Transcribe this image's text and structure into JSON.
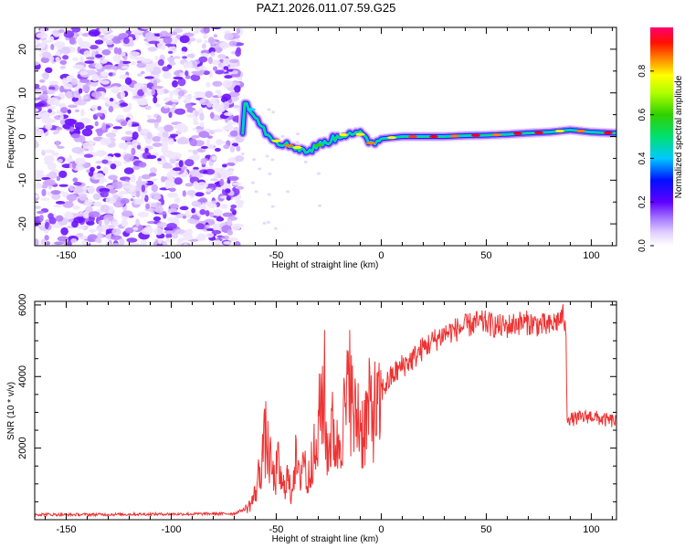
{
  "page": {
    "title": "PAZ1.2026.011.07.59.G25"
  },
  "chart_data": [
    {
      "type": "heatmap",
      "title": "PAZ1.2026.011.07.59.G25",
      "xlabel": "Height of straight line (km)",
      "ylabel": "Frequency (Hz)",
      "xlim": [
        -165,
        112
      ],
      "ylim": [
        -25,
        25
      ],
      "xticks": [
        -150,
        -100,
        -50,
        0,
        50,
        100
      ],
      "yticks": [
        -20,
        -10,
        0,
        10,
        20
      ],
      "noise_region": [
        -165,
        -67
      ],
      "ridge_x": [
        -65,
        -60,
        -55,
        -50,
        -45,
        -40,
        -35,
        -30,
        -25,
        -20,
        -15,
        -10,
        -5,
        0,
        10,
        20,
        30,
        40,
        50,
        60,
        70,
        80,
        90,
        100,
        110
      ],
      "ridge_freq": [
        8,
        5,
        1,
        -1,
        -2,
        -2.5,
        -3.5,
        -2,
        -1,
        0,
        1,
        0.5,
        -1.5,
        -0.5,
        0,
        0,
        0,
        0.2,
        0.3,
        0.5,
        0.8,
        1,
        1.5,
        1,
        0.8
      ],
      "colorbar": {
        "label": "Normalized spectral amplitude",
        "range": [
          0,
          1
        ],
        "ticks": [
          0.0,
          0.2,
          0.4,
          0.6,
          0.8
        ],
        "tick_labels": [
          "0.0",
          "0.2",
          "0.4",
          "0.6",
          "0.8"
        ],
        "colors": [
          "#ffffff",
          "#e8d8ff",
          "#9a5cff",
          "#5a00ff",
          "#0000ff",
          "#00bfff",
          "#00e070",
          "#30d000",
          "#ffff00",
          "#ff8000",
          "#ff0000",
          "#ff0060"
        ]
      }
    },
    {
      "type": "line",
      "xlabel": "Height of straight line (km)",
      "ylabel": "SNR (10 * v/v)",
      "xlim": [
        -165,
        112
      ],
      "ylim": [
        0,
        6100
      ],
      "xticks": [
        -150,
        -100,
        -50,
        0,
        50,
        100
      ],
      "yticks": [
        2000,
        4000,
        6000
      ],
      "series": [
        {
          "name": "SNR",
          "color": "#ee3333",
          "x": [
            -165,
            -150,
            -120,
            -90,
            -70,
            -65,
            -62,
            -60,
            -58,
            -56,
            -55,
            -53,
            -51,
            -49,
            -47,
            -45,
            -43,
            -41,
            -39,
            -37,
            -35,
            -33,
            -31,
            -29,
            -28,
            -27,
            -25,
            -23,
            -21,
            -19,
            -17,
            -15,
            -13,
            -11,
            -9,
            -7,
            -5,
            -3,
            -1,
            0,
            5,
            10,
            15,
            20,
            25,
            30,
            35,
            40,
            45,
            50,
            55,
            60,
            65,
            70,
            75,
            80,
            85,
            87,
            88,
            88.5,
            90,
            95,
            100,
            105,
            112
          ],
          "y": [
            150,
            140,
            150,
            160,
            170,
            300,
            500,
            800,
            1500,
            2200,
            2500,
            1800,
            1200,
            1700,
            900,
            1400,
            800,
            1900,
            1200,
            2100,
            1000,
            2200,
            1800,
            3500,
            4300,
            2500,
            2300,
            2800,
            2200,
            2900,
            3300,
            4200,
            3000,
            3300,
            2800,
            3100,
            3500,
            3400,
            3300,
            3600,
            4000,
            4300,
            4500,
            4800,
            5000,
            5200,
            5300,
            5400,
            5500,
            5500,
            5400,
            5400,
            5500,
            5500,
            5450,
            5400,
            5600,
            5700,
            4900,
            2900,
            2800,
            2850,
            2900,
            2800,
            2750
          ]
        }
      ]
    }
  ]
}
